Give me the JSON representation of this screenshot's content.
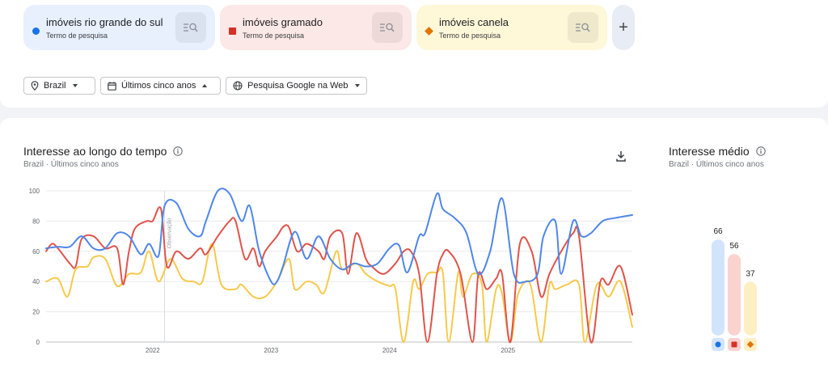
{
  "colors": {
    "blue": "#1a73e8",
    "red": "#d93025",
    "yellow": "#f9ab00",
    "blue_line": "#4f86ea",
    "red_line": "#e0534a",
    "yellow_line": "#f7c94b"
  },
  "terms": [
    {
      "name": "imóveis rio grande do sul",
      "sub": "Termo de pesquisa",
      "marker": "circle",
      "color": "#1a73e8",
      "bg": "#e8f0fe",
      "icon": "search-compare-icon"
    },
    {
      "name": "imóveis gramado",
      "sub": "Termo de pesquisa",
      "marker": "square",
      "color": "#d93025",
      "bg": "#fce8e6",
      "icon": "search-compare-icon"
    },
    {
      "name": "imóveis canela",
      "sub": "Termo de pesquisa",
      "marker": "diamond",
      "color": "#e37400",
      "bg": "#fef7d8",
      "icon": "search-compare-icon"
    }
  ],
  "add_label": "+",
  "filters": {
    "location": "Brazil",
    "time": "Últimos cinco anos",
    "property": "Pesquisa Google na Web"
  },
  "interest_over_time": {
    "title": "Interesse ao longo do tempo",
    "subtitle": "Brazil · Últimos cinco anos",
    "note_label": "Observação"
  },
  "average_interest": {
    "title": "Interesse médio",
    "subtitle": "Brazil · Últimos cinco anos"
  },
  "chart_data": [
    {
      "type": "line",
      "title": "Interesse ao longo do tempo",
      "ylim": [
        0,
        100
      ],
      "y_ticks": [
        0,
        20,
        40,
        60,
        80,
        100
      ],
      "x_tick_labels": [
        "2022",
        "2023",
        "2024",
        "2025"
      ],
      "x_tick_years": [
        2022,
        2023,
        2024,
        2025
      ],
      "x_range": [
        2021.1,
        2026.05
      ],
      "grid": true,
      "series": [
        {
          "name": "imóveis rio grande do sul",
          "color": "#4f86ea",
          "points": [
            [
              2021.1,
              62
            ],
            [
              2021.2,
              63
            ],
            [
              2021.3,
              63
            ],
            [
              2021.4,
              70
            ],
            [
              2021.5,
              62
            ],
            [
              2021.6,
              62
            ],
            [
              2021.7,
              72
            ],
            [
              2021.8,
              70
            ],
            [
              2021.9,
              58
            ],
            [
              2021.97,
              65
            ],
            [
              2022.05,
              57
            ],
            [
              2022.1,
              90
            ],
            [
              2022.2,
              92
            ],
            [
              2022.3,
              75
            ],
            [
              2022.4,
              70
            ],
            [
              2022.45,
              80
            ],
            [
              2022.55,
              100
            ],
            [
              2022.65,
              98
            ],
            [
              2022.75,
              80
            ],
            [
              2022.82,
              90
            ],
            [
              2022.9,
              60
            ],
            [
              2023.0,
              40
            ],
            [
              2023.05,
              40
            ],
            [
              2023.1,
              50
            ],
            [
              2023.2,
              73
            ],
            [
              2023.3,
              55
            ],
            [
              2023.4,
              70
            ],
            [
              2023.5,
              55
            ],
            [
              2023.6,
              48
            ],
            [
              2023.7,
              52
            ],
            [
              2023.8,
              50
            ],
            [
              2023.9,
              52
            ],
            [
              2024.0,
              62
            ],
            [
              2024.08,
              64
            ],
            [
              2024.15,
              46
            ],
            [
              2024.25,
              70
            ],
            [
              2024.3,
              72
            ],
            [
              2024.4,
              98
            ],
            [
              2024.45,
              88
            ],
            [
              2024.55,
              82
            ],
            [
              2024.65,
              72
            ],
            [
              2024.75,
              45
            ],
            [
              2024.85,
              60
            ],
            [
              2024.95,
              95
            ],
            [
              2025.05,
              45
            ],
            [
              2025.15,
              40
            ],
            [
              2025.25,
              45
            ],
            [
              2025.3,
              70
            ],
            [
              2025.4,
              80
            ],
            [
              2025.45,
              45
            ],
            [
              2025.55,
              80
            ],
            [
              2025.62,
              70
            ],
            [
              2025.7,
              72
            ],
            [
              2025.8,
              80
            ],
            [
              2025.9,
              82
            ],
            [
              2026.05,
              84
            ]
          ]
        },
        {
          "name": "imóveis gramado",
          "color": "#e0534a",
          "points": [
            [
              2021.1,
              60
            ],
            [
              2021.15,
              65
            ],
            [
              2021.2,
              62
            ],
            [
              2021.3,
              52
            ],
            [
              2021.35,
              50
            ],
            [
              2021.4,
              68
            ],
            [
              2021.5,
              70
            ],
            [
              2021.6,
              62
            ],
            [
              2021.7,
              62
            ],
            [
              2021.75,
              38
            ],
            [
              2021.8,
              60
            ],
            [
              2021.85,
              75
            ],
            [
              2021.95,
              80
            ],
            [
              2022.0,
              80
            ],
            [
              2022.07,
              88
            ],
            [
              2022.12,
              50
            ],
            [
              2022.2,
              60
            ],
            [
              2022.3,
              55
            ],
            [
              2022.4,
              62
            ],
            [
              2022.45,
              58
            ],
            [
              2022.55,
              70
            ],
            [
              2022.65,
              80
            ],
            [
              2022.7,
              80
            ],
            [
              2022.78,
              55
            ],
            [
              2022.85,
              62
            ],
            [
              2022.9,
              50
            ],
            [
              2022.95,
              60
            ],
            [
              2023.05,
              70
            ],
            [
              2023.1,
              76
            ],
            [
              2023.15,
              76
            ],
            [
              2023.22,
              60
            ],
            [
              2023.3,
              65
            ],
            [
              2023.4,
              60
            ],
            [
              2023.45,
              55
            ],
            [
              2023.5,
              70
            ],
            [
              2023.6,
              72
            ],
            [
              2023.65,
              45
            ],
            [
              2023.72,
              72
            ],
            [
              2023.8,
              55
            ],
            [
              2023.85,
              50
            ],
            [
              2023.95,
              45
            ],
            [
              2024.05,
              52
            ],
            [
              2024.12,
              60
            ],
            [
              2024.18,
              60
            ],
            [
              2024.25,
              45
            ],
            [
              2024.32,
              0
            ],
            [
              2024.4,
              45
            ],
            [
              2024.45,
              58
            ],
            [
              2024.5,
              60
            ],
            [
              2024.6,
              45
            ],
            [
              2024.7,
              0
            ],
            [
              2024.75,
              45
            ],
            [
              2024.82,
              35
            ],
            [
              2024.9,
              42
            ],
            [
              2024.95,
              45
            ],
            [
              2025.02,
              0
            ],
            [
              2025.1,
              65
            ],
            [
              2025.2,
              60
            ],
            [
              2025.28,
              30
            ],
            [
              2025.35,
              45
            ],
            [
              2025.45,
              60
            ],
            [
              2025.55,
              72
            ],
            [
              2025.6,
              70
            ],
            [
              2025.7,
              0
            ],
            [
              2025.78,
              40
            ],
            [
              2025.85,
              38
            ],
            [
              2025.95,
              50
            ],
            [
              2026.05,
              18
            ]
          ]
        },
        {
          "name": "imóveis canela",
          "color": "#f7c94b",
          "points": [
            [
              2021.1,
              40
            ],
            [
              2021.2,
              42
            ],
            [
              2021.28,
              30
            ],
            [
              2021.35,
              48
            ],
            [
              2021.45,
              50
            ],
            [
              2021.5,
              56
            ],
            [
              2021.6,
              55
            ],
            [
              2021.7,
              37
            ],
            [
              2021.8,
              45
            ],
            [
              2021.9,
              46
            ],
            [
              2021.97,
              60
            ],
            [
              2022.05,
              40
            ],
            [
              2022.15,
              55
            ],
            [
              2022.25,
              42
            ],
            [
              2022.35,
              40
            ],
            [
              2022.42,
              40
            ],
            [
              2022.5,
              65
            ],
            [
              2022.58,
              38
            ],
            [
              2022.7,
              35
            ],
            [
              2022.75,
              38
            ],
            [
              2022.85,
              30
            ],
            [
              2022.95,
              30
            ],
            [
              2023.05,
              40
            ],
            [
              2023.15,
              55
            ],
            [
              2023.2,
              35
            ],
            [
              2023.3,
              40
            ],
            [
              2023.38,
              38
            ],
            [
              2023.45,
              33
            ],
            [
              2023.55,
              60
            ],
            [
              2023.6,
              48
            ],
            [
              2023.72,
              52
            ],
            [
              2023.8,
              45
            ],
            [
              2023.9,
              40
            ],
            [
              2024.0,
              37
            ],
            [
              2024.05,
              35
            ],
            [
              2024.12,
              0
            ],
            [
              2024.2,
              40
            ],
            [
              2024.25,
              35
            ],
            [
              2024.32,
              45
            ],
            [
              2024.4,
              46
            ],
            [
              2024.45,
              46
            ],
            [
              2024.5,
              0
            ],
            [
              2024.58,
              46
            ],
            [
              2024.62,
              30
            ],
            [
              2024.7,
              45
            ],
            [
              2024.78,
              38
            ],
            [
              2024.82,
              0
            ],
            [
              2024.9,
              35
            ],
            [
              2024.95,
              32
            ],
            [
              2025.02,
              0
            ],
            [
              2025.08,
              30
            ],
            [
              2025.15,
              40
            ],
            [
              2025.2,
              35
            ],
            [
              2025.28,
              0
            ],
            [
              2025.35,
              38
            ],
            [
              2025.4,
              35
            ],
            [
              2025.5,
              38
            ],
            [
              2025.6,
              38
            ],
            [
              2025.65,
              0
            ],
            [
              2025.75,
              38
            ],
            [
              2025.85,
              30
            ],
            [
              2025.95,
              40
            ],
            [
              2026.05,
              10
            ]
          ]
        }
      ]
    },
    {
      "type": "bar",
      "title": "Interesse médio",
      "categories": [
        "imóveis rio grande do sul",
        "imóveis gramado",
        "imóveis canela"
      ],
      "values": [
        66,
        56,
        37
      ],
      "colors": [
        "#d2e3fc",
        "#fad2cf",
        "#feefc3"
      ],
      "marker_colors": [
        "#1a73e8",
        "#d93025",
        "#e37400"
      ],
      "ylim": [
        0,
        100
      ]
    }
  ]
}
